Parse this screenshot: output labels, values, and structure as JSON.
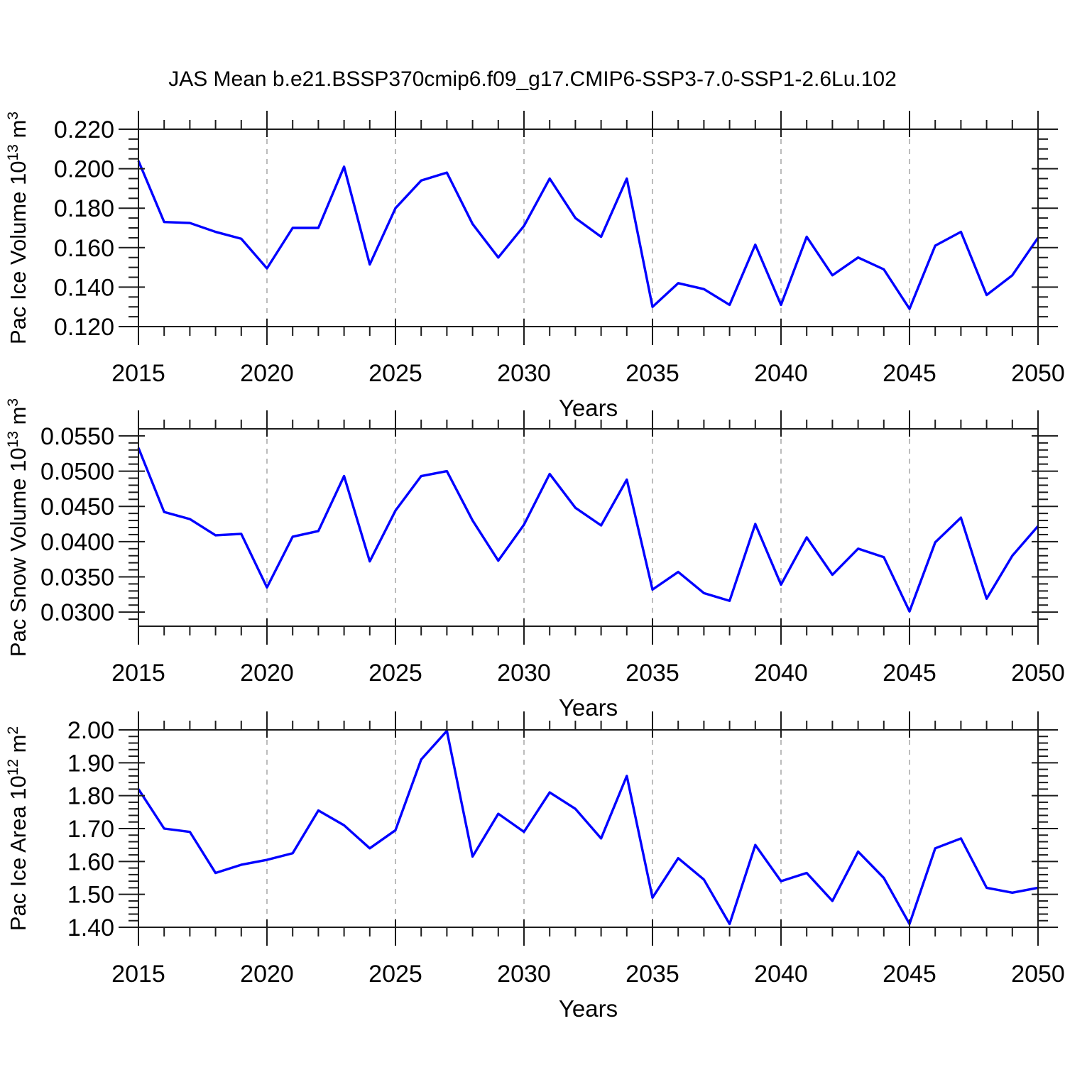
{
  "title": "JAS Mean b.e21.BSSP370cmip6.f09_g17.CMIP6-SSP3-7.0-SSP1-2.6Lu.102",
  "colors": {
    "line": "#0000ff",
    "axis": "#1c1c1c",
    "grid": "#ababab",
    "background": "#ffffff",
    "text": "#000000"
  },
  "chart_data": [
    {
      "type": "line",
      "title": "",
      "ylabel": "Pac Ice Volume 10^13 m^3",
      "ylabel_parts": [
        {
          "t": "Pac Ice Volume 10"
        },
        {
          "t": "13",
          "sup": true
        },
        {
          "t": " m"
        },
        {
          "t": "3",
          "sup": true
        }
      ],
      "xlabel": "Years",
      "xlim": [
        2015,
        2050
      ],
      "ylim": [
        0.12,
        0.22
      ],
      "xtick_values": [
        2015,
        2020,
        2025,
        2030,
        2035,
        2040,
        2045,
        2050
      ],
      "xtick_labels": [
        "2015",
        "2020",
        "2025",
        "2030",
        "2035",
        "2040",
        "2045",
        "2050"
      ],
      "xminor_step": 1,
      "ytick_values": [
        0.22,
        0.2,
        0.18,
        0.16,
        0.14,
        0.12
      ],
      "ytick_labels": [
        "0.220",
        "0.200",
        "0.180",
        "0.160",
        "0.140",
        "0.120"
      ],
      "yminor_step": 0.005,
      "grid_x": [
        2020,
        2025,
        2030,
        2035,
        2040,
        2045
      ],
      "x": [
        2015,
        2016,
        2017,
        2018,
        2019,
        2020,
        2021,
        2022,
        2023,
        2024,
        2025,
        2026,
        2027,
        2028,
        2029,
        2030,
        2031,
        2032,
        2033,
        2034,
        2035,
        2036,
        2037,
        2038,
        2039,
        2040,
        2041,
        2042,
        2043,
        2044,
        2045,
        2046,
        2047,
        2048,
        2049,
        2050
      ],
      "values": [
        0.204,
        0.173,
        0.1725,
        0.168,
        0.1645,
        0.1495,
        0.17,
        0.17,
        0.201,
        0.1515,
        0.18,
        0.194,
        0.198,
        0.172,
        0.155,
        0.171,
        0.195,
        0.175,
        0.1655,
        0.195,
        0.13,
        0.142,
        0.139,
        0.131,
        0.1615,
        0.131,
        0.1655,
        0.146,
        0.155,
        0.149,
        0.129,
        0.161,
        0.168,
        0.136,
        0.146,
        0.165
      ]
    },
    {
      "type": "line",
      "title": "",
      "ylabel": "Pac Snow Volume 10^13 m^3",
      "ylabel_parts": [
        {
          "t": "Pac Snow Volume 10"
        },
        {
          "t": "13",
          "sup": true
        },
        {
          "t": " m"
        },
        {
          "t": "3",
          "sup": true
        }
      ],
      "xlabel": "Years",
      "xlim": [
        2015,
        2050
      ],
      "ylim": [
        0.028,
        0.056
      ],
      "xtick_values": [
        2015,
        2020,
        2025,
        2030,
        2035,
        2040,
        2045,
        2050
      ],
      "xtick_labels": [
        "2015",
        "2020",
        "2025",
        "2030",
        "2035",
        "2040",
        "2045",
        "2050"
      ],
      "xminor_step": 1,
      "ytick_values": [
        0.055,
        0.05,
        0.045,
        0.04,
        0.035,
        0.03
      ],
      "ytick_labels": [
        "0.0550",
        "0.0500",
        "0.0450",
        "0.0400",
        "0.0350",
        "0.0300"
      ],
      "yminor_step": 0.001,
      "grid_x": [
        2020,
        2025,
        2030,
        2035,
        2040,
        2045
      ],
      "x": [
        2015,
        2016,
        2017,
        2018,
        2019,
        2020,
        2021,
        2022,
        2023,
        2024,
        2025,
        2026,
        2027,
        2028,
        2029,
        2030,
        2031,
        2032,
        2033,
        2034,
        2035,
        2036,
        2037,
        2038,
        2039,
        2040,
        2041,
        2042,
        2043,
        2044,
        2045,
        2046,
        2047,
        2048,
        2049,
        2050
      ],
      "values": [
        0.0533,
        0.0442,
        0.0432,
        0.0409,
        0.0411,
        0.0335,
        0.0407,
        0.0415,
        0.0493,
        0.0372,
        0.0444,
        0.0493,
        0.05,
        0.043,
        0.0373,
        0.0424,
        0.0496,
        0.0448,
        0.0423,
        0.0488,
        0.0332,
        0.0357,
        0.0327,
        0.0316,
        0.0425,
        0.0339,
        0.0406,
        0.0353,
        0.039,
        0.0378,
        0.0301,
        0.0399,
        0.0434,
        0.0319,
        0.038,
        0.0422
      ]
    },
    {
      "type": "line",
      "title": "",
      "ylabel": "Pac Ice Area 10^12 m^2",
      "ylabel_parts": [
        {
          "t": "Pac Ice Area 10"
        },
        {
          "t": "12",
          "sup": true
        },
        {
          "t": " m"
        },
        {
          "t": "2",
          "sup": true
        }
      ],
      "xlabel": "Years",
      "xlim": [
        2015,
        2050
      ],
      "ylim": [
        1.4,
        2.0
      ],
      "xtick_values": [
        2015,
        2020,
        2025,
        2030,
        2035,
        2040,
        2045,
        2050
      ],
      "xtick_labels": [
        "2015",
        "2020",
        "2025",
        "2030",
        "2035",
        "2040",
        "2045",
        "2050"
      ],
      "xminor_step": 1,
      "ytick_values": [
        2.0,
        1.9,
        1.8,
        1.7,
        1.6,
        1.5,
        1.4
      ],
      "ytick_labels": [
        "2.00",
        "1.90",
        "1.80",
        "1.70",
        "1.60",
        "1.50",
        "1.40"
      ],
      "yminor_step": 0.02,
      "grid_x": [
        2020,
        2025,
        2030,
        2035,
        2040,
        2045
      ],
      "x": [
        2015,
        2016,
        2017,
        2018,
        2019,
        2020,
        2021,
        2022,
        2023,
        2024,
        2025,
        2026,
        2027,
        2028,
        2029,
        2030,
        2031,
        2032,
        2033,
        2034,
        2035,
        2036,
        2037,
        2038,
        2039,
        2040,
        2041,
        2042,
        2043,
        2044,
        2045,
        2046,
        2047,
        2048,
        2049,
        2050
      ],
      "values": [
        1.82,
        1.7,
        1.69,
        1.565,
        1.59,
        1.605,
        1.625,
        1.755,
        1.71,
        1.64,
        1.695,
        1.91,
        1.997,
        1.615,
        1.745,
        1.69,
        1.81,
        1.76,
        1.67,
        1.86,
        1.49,
        1.61,
        1.545,
        1.41,
        1.65,
        1.54,
        1.565,
        1.48,
        1.63,
        1.55,
        1.41,
        1.64,
        1.67,
        1.52,
        1.505,
        1.52
      ]
    }
  ]
}
